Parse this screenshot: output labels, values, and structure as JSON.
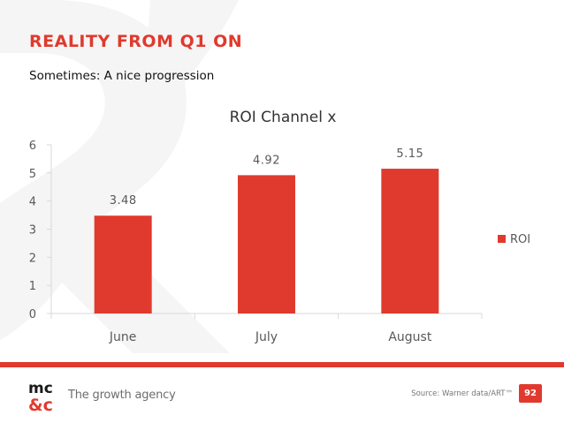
{
  "slide": {
    "title": "REALITY FROM Q1 ON",
    "subtitle": "Sometimes: A nice progression",
    "page_number": "92"
  },
  "footer": {
    "tagline": "The growth agency",
    "source": "Source: Warner data/ART™",
    "logo_text": "mc&c"
  },
  "colors": {
    "accent": "#e03a2e",
    "text_dark": "#111111",
    "axis": "#d9d9d9",
    "watermark": "#f4f4f4"
  },
  "chart_data": {
    "type": "bar",
    "title": "ROI Channel x",
    "categories": [
      "June",
      "July",
      "August"
    ],
    "series": [
      {
        "name": "ROI",
        "values": [
          3.48,
          4.92,
          5.15
        ],
        "labels": [
          "3.48",
          "4.92",
          "5.15"
        ]
      }
    ],
    "xlabel": "",
    "ylabel": "",
    "ylim": [
      0,
      6
    ],
    "yticks": [
      0,
      1,
      2,
      3,
      4,
      5,
      6
    ],
    "grid": false,
    "legend": "right"
  }
}
